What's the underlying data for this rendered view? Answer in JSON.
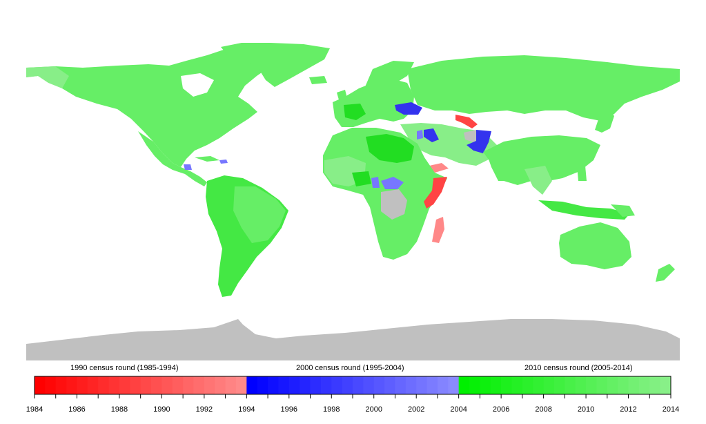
{
  "legend": {
    "rounds": [
      {
        "title": "1990 census round (1985-1994)",
        "from": 1984,
        "to": 1994,
        "color_from": "#ff0000",
        "color_to": "#ff8a8a"
      },
      {
        "title": "2000 census round (1995-2004)",
        "from": 1994,
        "to": 2004,
        "color_from": "#0000ff",
        "color_to": "#8a8aff"
      },
      {
        "title": "2010 census round (2005-2014)",
        "from": 2004,
        "to": 2014,
        "color_from": "#00f000",
        "color_to": "#88f088"
      }
    ],
    "tick_labels": [
      "1984",
      "1986",
      "1988",
      "1990",
      "1992",
      "1994",
      "1996",
      "1998",
      "2000",
      "2002",
      "2004",
      "2006",
      "2008",
      "2010",
      "2012",
      "2014"
    ]
  },
  "colors": {
    "no_census": "#c0c0c0",
    "land_default": "#66ee66",
    "land_dark": "#22dd22",
    "land_light": "#88ee88",
    "red": "#ff4444",
    "pink": "#ff8888",
    "blue": "#3333ee",
    "light_blue": "#7777ff"
  }
}
